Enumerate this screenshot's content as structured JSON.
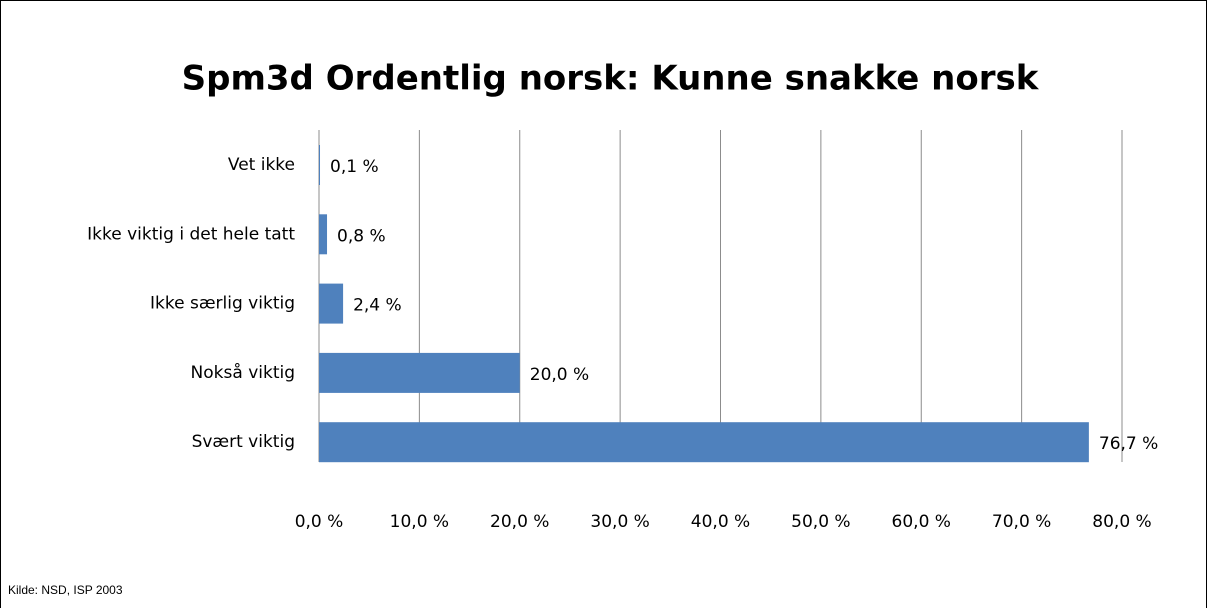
{
  "chart_data": {
    "type": "barh",
    "title": "Spm3d Ordentlig norsk: Kunne snakke norsk",
    "categories": [
      "Vet ikke",
      "Ikke viktig i det hele tatt",
      "Ikke særlig viktig",
      "Nokså viktig",
      "Svært viktig"
    ],
    "values": [
      0.1,
      0.8,
      2.4,
      20.0,
      76.7
    ],
    "value_labels": [
      "0,1 %",
      "0,8 %",
      "2,4 %",
      "20,0 %",
      "76,7 %"
    ],
    "color": "#4f81bd",
    "xlim": [
      0,
      80
    ],
    "xticks": [
      {
        "value": 0,
        "label": "0,0 %"
      },
      {
        "value": 10,
        "label": "10,0 %"
      },
      {
        "value": 20,
        "label": "20,0 %"
      },
      {
        "value": 30,
        "label": "30,0 %"
      },
      {
        "value": 40,
        "label": "40,0 %"
      },
      {
        "value": 50,
        "label": "50,0 %"
      },
      {
        "value": 60,
        "label": "60,0 %"
      },
      {
        "value": 70,
        "label": "70,0 %"
      },
      {
        "value": 80,
        "label": "80,0 %"
      }
    ],
    "grid": true,
    "source": "Kilde: NSD, ISP 2003"
  }
}
